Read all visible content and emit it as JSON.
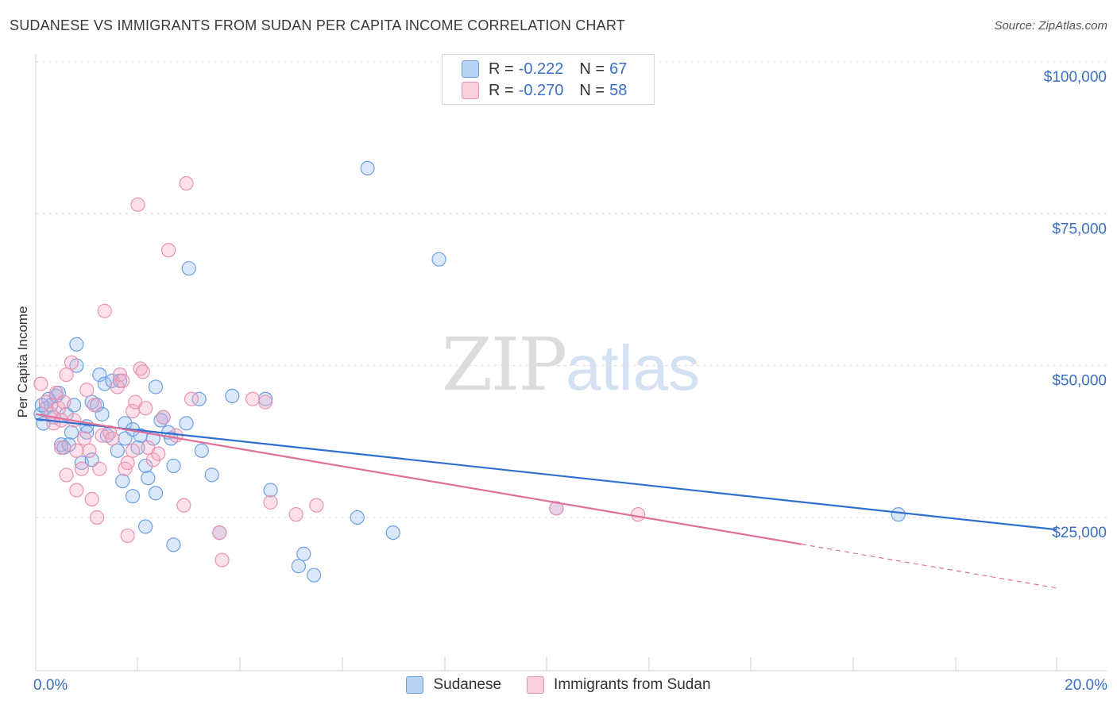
{
  "title": "SUDANESE VS IMMIGRANTS FROM SUDAN PER CAPITA INCOME CORRELATION CHART",
  "source": "Source: ZipAtlas.com",
  "watermark": {
    "zip": "ZIP",
    "atlas": "atlas"
  },
  "legend": {
    "r_label": "R =",
    "n_label": "N =",
    "rows": [
      {
        "name": "Sudanese",
        "r": "-0.222",
        "n": "67",
        "color": "#a8c8f0",
        "border": "#6a9ee0"
      },
      {
        "name": "Immigrants from Sudan",
        "r": "-0.270",
        "n": "58",
        "color": "#f8c3d3",
        "border": "#e890ad"
      }
    ]
  },
  "colors": {
    "blue_line": "#2f6fd0",
    "pink_line": "#e0709a",
    "blue_fill": "rgba(150,190,240,0.35)",
    "blue_stroke": "#6d9fe0",
    "pink_fill": "rgba(245,170,195,0.35)",
    "pink_stroke": "#e893b1",
    "tick_text": "#3a6fc4"
  },
  "chart_data": {
    "type": "scatter",
    "title": "SUDANESE VS IMMIGRANTS FROM SUDAN PER CAPITA INCOME CORRELATION CHART",
    "xlabel": "",
    "ylabel": "Per Capita Income",
    "xlim": [
      0,
      20
    ],
    "ylim": [
      0,
      105000
    ],
    "x_tick_labels": [
      "0.0%",
      "20.0%"
    ],
    "y_ticks": [
      25000,
      50000,
      75000,
      100000
    ],
    "y_tick_labels": [
      "$25,000",
      "$50,000",
      "$75,000",
      "$100,000"
    ],
    "series": [
      {
        "name": "Sudanese",
        "r": -0.222,
        "n": 67,
        "trend": {
          "x": [
            0,
            20
          ],
          "y": [
            41200,
            23000
          ]
        },
        "points": [
          [
            0.1,
            42000
          ],
          [
            0.15,
            40500
          ],
          [
            0.2,
            43000
          ],
          [
            0.25,
            44500
          ],
          [
            0.3,
            43500
          ],
          [
            0.35,
            41500
          ],
          [
            0.4,
            45000
          ],
          [
            0.45,
            45500
          ],
          [
            0.5,
            37000
          ],
          [
            0.55,
            36500
          ],
          [
            0.6,
            42000
          ],
          [
            0.7,
            39000
          ],
          [
            0.75,
            43500
          ],
          [
            0.8,
            53500
          ],
          [
            0.8,
            50000
          ],
          [
            0.9,
            34000
          ],
          [
            1.0,
            39000
          ],
          [
            1.0,
            40000
          ],
          [
            1.1,
            34500
          ],
          [
            1.1,
            44000
          ],
          [
            1.2,
            43500
          ],
          [
            1.25,
            48500
          ],
          [
            1.3,
            42000
          ],
          [
            1.35,
            47000
          ],
          [
            1.4,
            38500
          ],
          [
            1.5,
            47500
          ],
          [
            1.6,
            36000
          ],
          [
            1.65,
            47500
          ],
          [
            1.7,
            31000
          ],
          [
            1.75,
            38000
          ],
          [
            1.75,
            40500
          ],
          [
            1.9,
            39500
          ],
          [
            1.9,
            28500
          ],
          [
            2.0,
            36500
          ],
          [
            2.05,
            38500
          ],
          [
            2.15,
            33500
          ],
          [
            2.15,
            23500
          ],
          [
            2.2,
            31500
          ],
          [
            2.3,
            38000
          ],
          [
            2.35,
            29000
          ],
          [
            2.35,
            46500
          ],
          [
            2.5,
            41500
          ],
          [
            2.6,
            39000
          ],
          [
            2.65,
            38000
          ],
          [
            2.7,
            33500
          ],
          [
            2.7,
            20500
          ],
          [
            2.95,
            40500
          ],
          [
            3.0,
            66000
          ],
          [
            3.2,
            44500
          ],
          [
            3.25,
            36000
          ],
          [
            3.45,
            32000
          ],
          [
            3.6,
            22500
          ],
          [
            3.85,
            45000
          ],
          [
            4.5,
            44500
          ],
          [
            4.6,
            29500
          ],
          [
            5.15,
            17000
          ],
          [
            5.25,
            19000
          ],
          [
            5.45,
            15500
          ],
          [
            6.3,
            25000
          ],
          [
            6.5,
            82500
          ],
          [
            7.0,
            22500
          ],
          [
            7.9,
            67500
          ],
          [
            10.2,
            26500
          ],
          [
            16.9,
            25500
          ],
          [
            0.12,
            43500
          ],
          [
            0.65,
            37000
          ],
          [
            2.45,
            41000
          ]
        ]
      },
      {
        "name": "Immigrants from Sudan",
        "r": -0.27,
        "n": 58,
        "trend": {
          "x": [
            0,
            15
          ],
          "y": [
            42000,
            20600
          ]
        },
        "trend_dashed": {
          "x": [
            15,
            20
          ],
          "y": [
            20600,
            13400
          ]
        },
        "points": [
          [
            0.1,
            47000
          ],
          [
            0.2,
            44000
          ],
          [
            0.3,
            42000
          ],
          [
            0.35,
            40500
          ],
          [
            0.4,
            45500
          ],
          [
            0.45,
            43000
          ],
          [
            0.5,
            41000
          ],
          [
            0.5,
            36500
          ],
          [
            0.6,
            48500
          ],
          [
            0.6,
            32000
          ],
          [
            0.7,
            50500
          ],
          [
            0.75,
            41000
          ],
          [
            0.8,
            36000
          ],
          [
            0.8,
            29500
          ],
          [
            0.9,
            33000
          ],
          [
            0.95,
            38000
          ],
          [
            1.0,
            46000
          ],
          [
            1.05,
            36000
          ],
          [
            1.1,
            28000
          ],
          [
            1.2,
            25000
          ],
          [
            1.25,
            33000
          ],
          [
            1.3,
            38500
          ],
          [
            1.35,
            59000
          ],
          [
            1.45,
            39000
          ],
          [
            1.5,
            38000
          ],
          [
            1.6,
            46500
          ],
          [
            1.65,
            48500
          ],
          [
            1.7,
            47500
          ],
          [
            1.75,
            33000
          ],
          [
            1.8,
            34000
          ],
          [
            1.8,
            22000
          ],
          [
            1.9,
            42500
          ],
          [
            1.9,
            36000
          ],
          [
            1.95,
            44000
          ],
          [
            2.0,
            76500
          ],
          [
            2.05,
            49500
          ],
          [
            2.1,
            49000
          ],
          [
            2.15,
            43000
          ],
          [
            2.2,
            36500
          ],
          [
            2.3,
            34500
          ],
          [
            2.4,
            35500
          ],
          [
            2.6,
            69000
          ],
          [
            2.75,
            38500
          ],
          [
            2.9,
            27000
          ],
          [
            2.95,
            80000
          ],
          [
            3.05,
            44500
          ],
          [
            3.6,
            22500
          ],
          [
            3.65,
            18000
          ],
          [
            4.25,
            44500
          ],
          [
            4.5,
            44000
          ],
          [
            4.6,
            27500
          ],
          [
            5.1,
            25500
          ],
          [
            5.5,
            27000
          ],
          [
            10.2,
            26500
          ],
          [
            11.8,
            25500
          ],
          [
            0.55,
            44000
          ],
          [
            1.15,
            43500
          ],
          [
            2.5,
            41500
          ]
        ]
      }
    ]
  }
}
